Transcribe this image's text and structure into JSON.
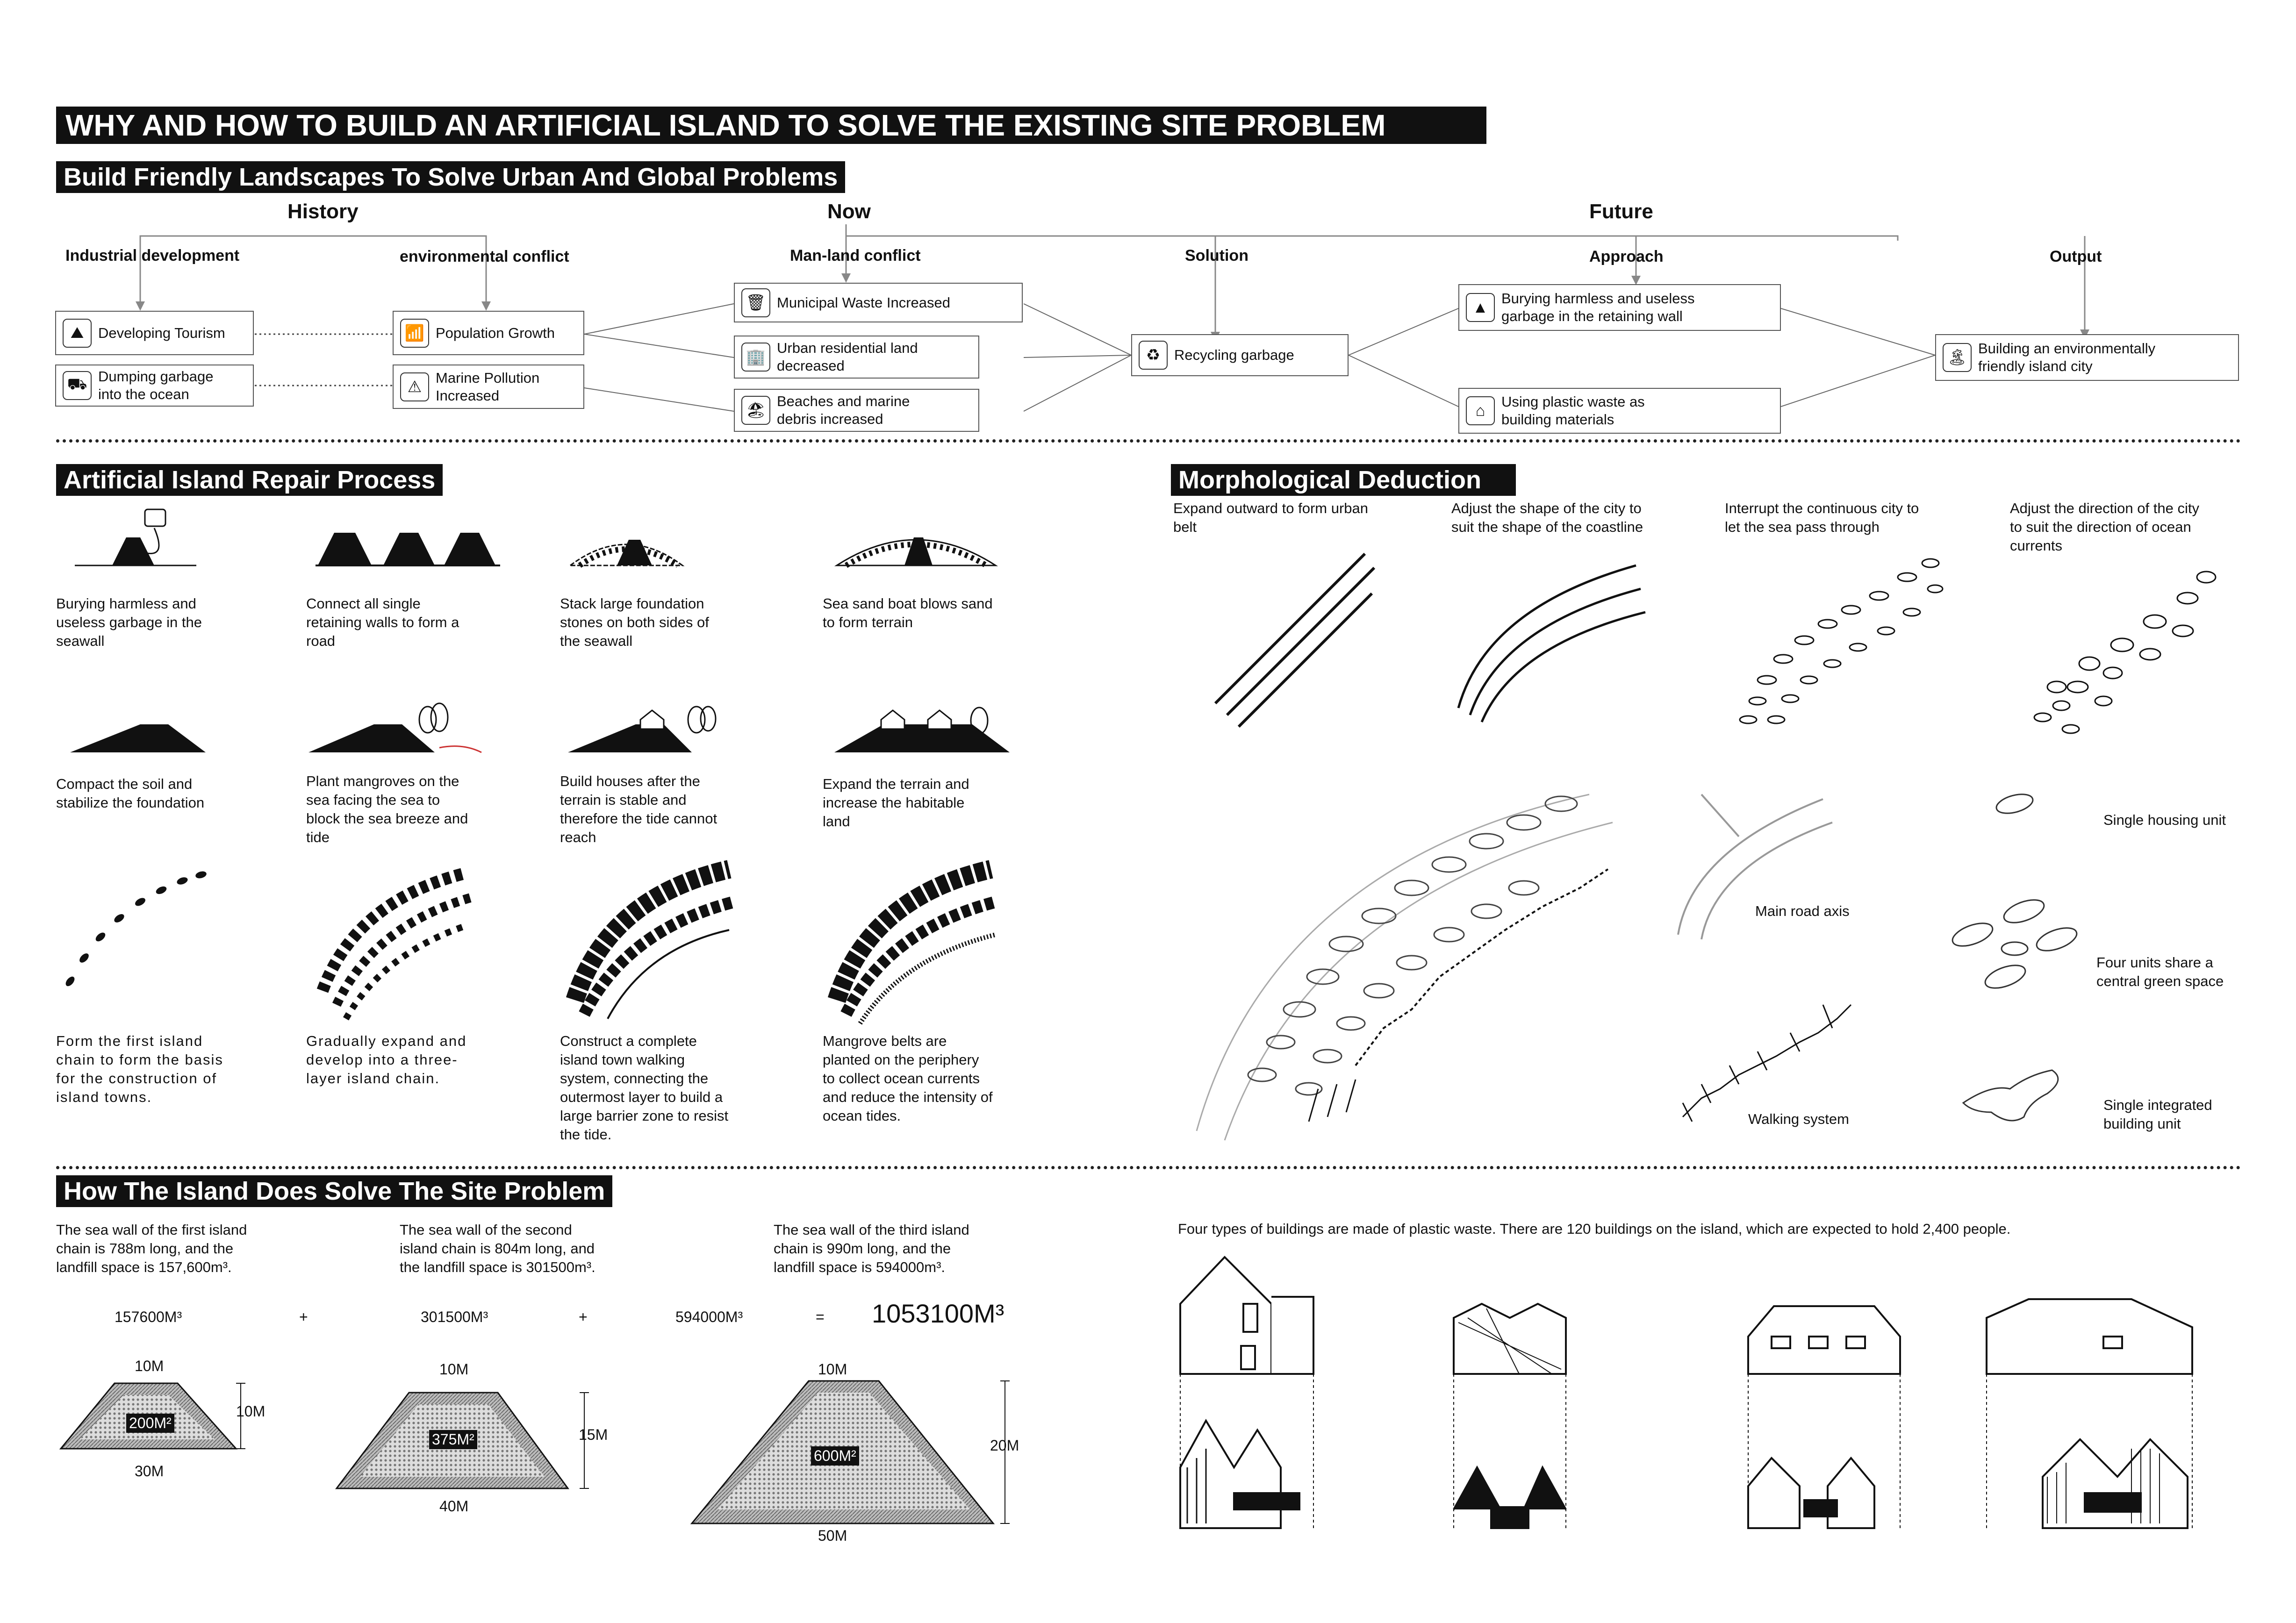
{
  "title": "WHY AND HOW TO BUILD AN ARTIFICIAL ISLAND TO SOLVE THE EXISTING SITE PROBLEM",
  "section1": {
    "heading": "Build Friendly Landscapes To Solve Urban And Global Problems",
    "history": "History",
    "now": "Now",
    "future": "Future",
    "industrial": "Industrial development",
    "environmental": "environmental conflict",
    "manland": "Man-land conflict",
    "solution": "Solution",
    "approach": "Approach",
    "output": "Output",
    "boxes": {
      "tourism": "Developing Tourism",
      "dumping": "Dumping garbage\ninto the ocean",
      "population": "Population Growth",
      "marine": "Marine Pollution\nIncreased",
      "municipal": "Municipal Waste Increased",
      "urban": "Urban residential land\ndecreased",
      "beaches": "Beaches and marine\ndebris increased",
      "recycling": "Recycling garbage",
      "burying": "Burying harmless and useless\ngarbage in the retaining wall",
      "plastic": "Using plastic waste as\nbuilding materials",
      "building": "Building an environmentally\nfriendly island city"
    }
  },
  "section2": {
    "heading": "Artificial Island Repair Process",
    "steps": [
      "Burying harmless and\nuseless garbage in the\nseawall",
      "Connect all single\nretaining walls to form a\nroad",
      "Stack large foundation\nstones on both sides of\nthe seawall",
      "Sea sand boat blows sand\nto form terrain",
      "Compact the soil and\nstabilize the foundation",
      "Plant mangroves on the\nsea facing the sea to\nblock the sea breeze and\ntide",
      "Build houses after the\nterrain is stable and\ntherefore the tide cannot\nreach",
      "Expand the terrain and\nincrease the habitable\nland",
      "Form the first island\nchain to form the basis\nfor the construction of\nisland towns.",
      "Gradually expand and\ndevelop into a three-\nlayer island chain.",
      "Construct a complete\nisland town walking\nsystem, connecting the\noutermost layer to build a\nlarge barrier zone to resist\nthe tide.",
      "Mangrove belts are\nplanted on the periphery\nto collect ocean currents\nand reduce the intensity of\nocean tides."
    ]
  },
  "section3": {
    "heading": "Morphological Deduction",
    "captions": [
      "Expand outward to form urban\nbelt",
      "Adjust the shape of the city to\nsuit the shape of the coastline",
      "Interrupt the continuous city to\nlet the sea pass through",
      "Adjust the direction of the city\nto suit the direction of ocean\ncurrents"
    ],
    "labels": {
      "main_road": "Main road axis",
      "walking": "Walking system",
      "single_housing": "Single housing unit",
      "four_units": "Four units share a\ncentral green space",
      "integrated": "Single integrated\nbuilding unit"
    }
  },
  "section4": {
    "heading": "How The Island Does Solve The Site Problem",
    "walls": [
      "The sea wall of the first island\nchain is 788m long, and the\nlandfill space is 157,600m³.",
      "The sea wall of the second\nisland chain is 804m long, and\nthe landfill space is 301500m³.",
      "The sea wall of the third island\nchain is 990m long, and the\nlandfill space is 594000m³."
    ],
    "v1": "157600M³",
    "plus1": "+",
    "v2": "301500M³",
    "plus2": "+",
    "v3": "594000M³",
    "eq": "=",
    "total": "1053100M³",
    "sec1": {
      "top": "10M",
      "side": "10M",
      "bottom": "30M",
      "area": "200M²"
    },
    "sec2": {
      "top": "10M",
      "side": "15M",
      "bottom": "40M",
      "area": "375M²"
    },
    "sec3": {
      "top": "10M",
      "side": "20M",
      "bottom": "50M",
      "area": "600M²"
    }
  },
  "section5": {
    "text": "Four types of buildings are made of plastic waste. There are 120 buildings on the island, which are expected to hold 2,400 people."
  }
}
